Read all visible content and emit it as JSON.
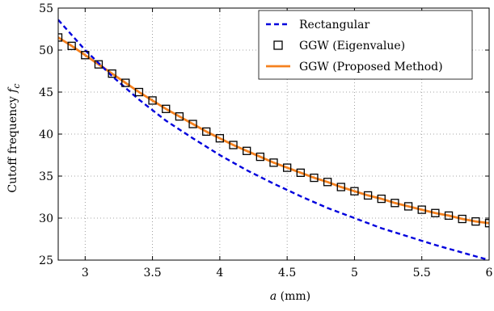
{
  "chart_data": {
    "type": "line",
    "xlabel_var": "a",
    "xlabel_unit": " (mm)",
    "ylabel_text": "Cutoff frequency ",
    "ylabel_var": "f",
    "ylabel_sub": "c",
    "xlim": [
      2.8,
      6.0
    ],
    "ylim": [
      25,
      55
    ],
    "x_ticks": [
      3,
      3.5,
      4,
      4.5,
      5,
      5.5,
      6
    ],
    "x_tick_labels": [
      "3",
      "3.5",
      "4",
      "4.5",
      "5",
      "5.5",
      "6"
    ],
    "y_ticks": [
      25,
      30,
      35,
      40,
      45,
      50,
      55
    ],
    "y_tick_labels": [
      "25",
      "30",
      "35",
      "40",
      "45",
      "50",
      "55"
    ],
    "grid": true,
    "legend_position": "top-right",
    "series": [
      {
        "name": "Rectangular",
        "style": "dashed",
        "color": "#0000dd",
        "x": [
          2.8,
          3.0,
          3.2,
          3.4,
          3.6,
          3.8,
          4.0,
          4.2,
          4.4,
          4.6,
          4.8,
          5.0,
          5.2,
          5.4,
          5.6,
          5.8,
          6.0
        ],
        "y": [
          53.6,
          50.0,
          46.9,
          44.1,
          41.6,
          39.5,
          37.5,
          35.7,
          34.1,
          32.6,
          31.2,
          30.0,
          28.8,
          27.8,
          26.8,
          25.9,
          25.0
        ]
      },
      {
        "name": "GGW (Eigenvalue)",
        "style": "markers",
        "marker": "square",
        "color": "#000000",
        "x": [
          2.8,
          2.9,
          3.0,
          3.1,
          3.2,
          3.3,
          3.4,
          3.5,
          3.6,
          3.7,
          3.8,
          3.9,
          4.0,
          4.1,
          4.2,
          4.3,
          4.4,
          4.5,
          4.6,
          4.7,
          4.8,
          4.9,
          5.0,
          5.1,
          5.2,
          5.3,
          5.4,
          5.5,
          5.6,
          5.7,
          5.8,
          5.9,
          6.0
        ],
        "y": [
          51.5,
          50.5,
          49.4,
          48.3,
          47.2,
          46.1,
          45.0,
          44.0,
          43.0,
          42.1,
          41.2,
          40.3,
          39.5,
          38.7,
          38.0,
          37.3,
          36.6,
          36.0,
          35.4,
          34.8,
          34.3,
          33.7,
          33.2,
          32.7,
          32.3,
          31.8,
          31.4,
          31.0,
          30.6,
          30.3,
          29.9,
          29.6,
          29.4
        ]
      },
      {
        "name": "GGW (Proposed Method)",
        "style": "solid",
        "color": "#f5811f",
        "x": [
          2.8,
          2.9,
          3.0,
          3.1,
          3.2,
          3.3,
          3.4,
          3.5,
          3.6,
          3.7,
          3.8,
          3.9,
          4.0,
          4.1,
          4.2,
          4.3,
          4.4,
          4.5,
          4.6,
          4.7,
          4.8,
          4.9,
          5.0,
          5.1,
          5.2,
          5.3,
          5.4,
          5.5,
          5.6,
          5.7,
          5.8,
          5.9,
          6.0
        ],
        "y": [
          51.5,
          50.5,
          49.4,
          48.3,
          47.2,
          46.1,
          45.0,
          44.0,
          43.0,
          42.1,
          41.2,
          40.3,
          39.5,
          38.7,
          38.0,
          37.3,
          36.6,
          36.0,
          35.4,
          34.8,
          34.3,
          33.7,
          33.2,
          32.7,
          32.3,
          31.8,
          31.4,
          31.0,
          30.6,
          30.3,
          29.9,
          29.6,
          29.4
        ]
      }
    ]
  }
}
